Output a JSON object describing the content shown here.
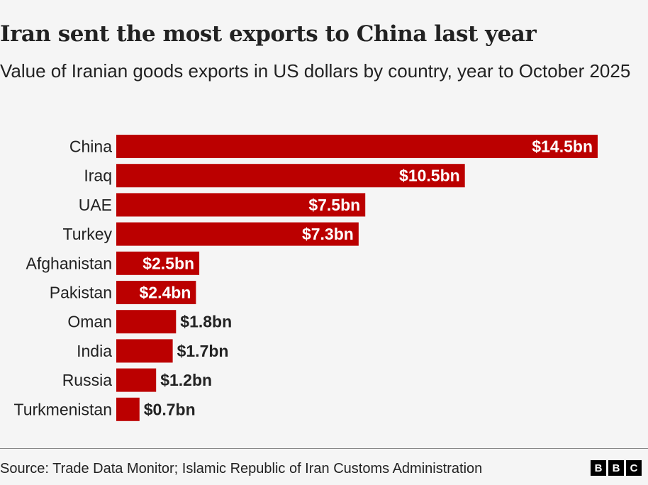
{
  "header": {
    "title": "Iran sent the most exports to China last year",
    "subtitle": "Value of Iranian goods exports in US dollars by country, year to October 2025"
  },
  "footer": {
    "source": "Source: Trade Data Monitor; Islamic Republic of Iran Customs Administration",
    "logo_letters": [
      "B",
      "B",
      "C"
    ],
    "logo_icon": "bbc-logo-icon"
  },
  "colors": {
    "bar": "#bb0000",
    "label_inside": "#ffffff",
    "label_outside": "#222222",
    "background": "#f5f5f5"
  },
  "chart_data": {
    "type": "bar",
    "orientation": "horizontal",
    "title": "Iran sent the most exports to China last year",
    "subtitle": "Value of Iranian goods exports in US dollars by country, year to October 2025",
    "xlabel": "",
    "ylabel": "",
    "unit": "US$ billions",
    "categories": [
      "China",
      "Iraq",
      "UAE",
      "Turkey",
      "Afghanistan",
      "Pakistan",
      "Oman",
      "India",
      "Russia",
      "Turkmenistan"
    ],
    "values": [
      14.5,
      10.5,
      7.5,
      7.3,
      2.5,
      2.4,
      1.8,
      1.7,
      1.2,
      0.7
    ],
    "data_labels": [
      "$14.5bn",
      "$10.5bn",
      "$7.5bn",
      "$7.3bn",
      "$2.5bn",
      "$2.4bn",
      "$1.8bn",
      "$1.7bn",
      "$1.2bn",
      "$0.7bn"
    ],
    "xlim": [
      0,
      14.5
    ],
    "grid": false,
    "legend": "none",
    "source": "Source: Trade Data Monitor; Islamic Republic of Iran Customs Administration"
  }
}
